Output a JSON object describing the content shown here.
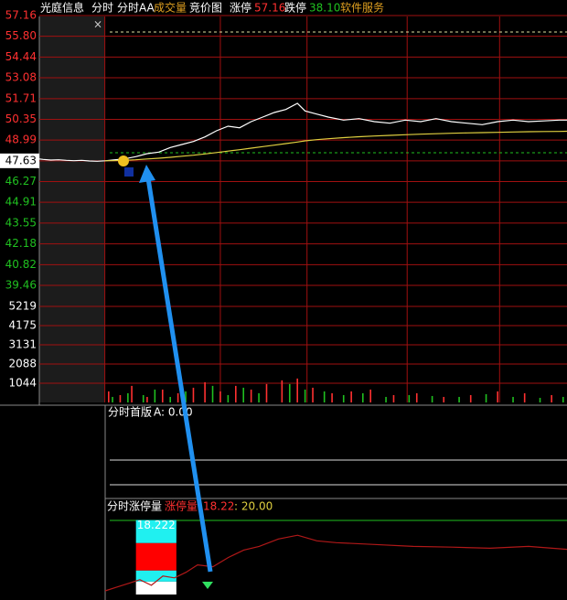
{
  "header": {
    "stock": "光庭信息",
    "tabs": [
      "分时",
      "分时AA",
      "成交量",
      "竞价图"
    ],
    "limit_up_label": "涨停",
    "limit_up": "57.16",
    "limit_down_label": "跌停",
    "limit_down": "38.10",
    "sector": "软件服务",
    "close": "×"
  },
  "chart_data": {
    "type": "line",
    "xlim": [
      -34,
      240
    ],
    "ylim": [
      39.46,
      57.16
    ],
    "yticks": [
      57.16,
      {
        "value": 55.8,
        "label": "55.80"
      },
      54.44,
      53.08,
      51.71,
      50.35,
      48.99,
      47.63,
      46.27,
      44.91,
      43.55,
      42.18,
      40.82,
      39.46
    ],
    "grid": true,
    "x": [
      -34,
      -32,
      -28,
      -24,
      -20,
      -16,
      -12,
      -8,
      -4,
      0,
      4,
      10,
      16,
      22,
      28,
      34,
      40,
      46,
      52,
      58,
      64,
      70,
      76,
      82,
      88,
      94,
      100,
      104,
      110,
      116,
      124,
      132,
      140,
      148,
      156,
      164,
      172,
      180,
      188,
      196,
      204,
      212,
      220,
      228,
      236,
      240
    ],
    "series": [
      {
        "color": "#ffffff",
        "values": [
          47.75,
          47.72,
          47.68,
          47.7,
          47.66,
          47.64,
          47.66,
          47.62,
          47.6,
          47.63,
          47.68,
          47.75,
          47.9,
          48.1,
          48.2,
          48.5,
          48.7,
          48.9,
          49.2,
          49.6,
          49.9,
          49.8,
          50.2,
          50.5,
          50.8,
          51.0,
          51.4,
          50.9,
          50.7,
          50.5,
          50.3,
          50.4,
          50.2,
          50.1,
          50.3,
          50.2,
          50.4,
          50.2,
          50.1,
          50.0,
          50.2,
          50.3,
          50.2,
          50.25,
          50.3,
          50.3
        ]
      },
      {
        "color": "#e0d040",
        "values": [
          null,
          null,
          null,
          null,
          null,
          null,
          null,
          null,
          null,
          47.63,
          47.64,
          47.66,
          47.7,
          47.75,
          47.8,
          47.86,
          47.93,
          48.0,
          48.08,
          48.17,
          48.27,
          48.36,
          48.46,
          48.56,
          48.66,
          48.76,
          48.86,
          48.94,
          49.02,
          49.08,
          49.15,
          49.21,
          49.26,
          49.3,
          49.34,
          49.38,
          49.41,
          49.44,
          49.46,
          49.48,
          49.5,
          49.52,
          49.54,
          49.55,
          49.56,
          49.57
        ]
      }
    ],
    "volume": {
      "ylim": [
        0,
        5219
      ],
      "yticks": [
        5219,
        4175,
        3131,
        2088,
        1044
      ],
      "series": [
        {
          "color": "#ff3030",
          "x": [
            2,
            8,
            14,
            22,
            30,
            38,
            46,
            52,
            60,
            68,
            76,
            84,
            92,
            100,
            108,
            118,
            128,
            138,
            150,
            162,
            176,
            190,
            204,
            218,
            232
          ],
          "values": [
            600,
            400,
            900,
            300,
            700,
            500,
            800,
            1100,
            600,
            900,
            700,
            1000,
            1200,
            1300,
            800,
            500,
            600,
            700,
            400,
            500,
            300,
            400,
            600,
            500,
            400
          ]
        },
        {
          "color": "#20c020",
          "x": [
            4,
            12,
            20,
            26,
            34,
            42,
            56,
            64,
            72,
            80,
            96,
            104,
            114,
            124,
            134,
            146,
            158,
            170,
            184,
            198,
            212,
            226,
            238
          ],
          "values": [
            300,
            500,
            400,
            700,
            300,
            600,
            900,
            400,
            800,
            500,
            1000,
            700,
            600,
            400,
            500,
            300,
            400,
            350,
            300,
            450,
            300,
            250,
            300
          ]
        }
      ]
    }
  },
  "indicator1": {
    "name": "分时首版",
    "value": "A: 0.00"
  },
  "indicator2": {
    "name": "分时涨停量",
    "legend": "涨停量",
    "value": "18.22",
    "reference": ": 20.00",
    "bar_label": "18.222",
    "ylim": [
      0,
      20
    ],
    "x": [
      0,
      6,
      12,
      18,
      24,
      30,
      36,
      42,
      48,
      56,
      64,
      72,
      80,
      90,
      100,
      110,
      120,
      140,
      160,
      180,
      200,
      220,
      240
    ],
    "values": [
      1,
      2,
      3,
      4,
      2.5,
      5,
      4.5,
      6,
      8,
      7.5,
      10,
      12,
      13,
      15,
      16,
      14.5,
      14,
      13.5,
      13,
      12.8,
      12.5,
      13,
      12.2
    ],
    "bar": {
      "x": [
        16,
        37
      ],
      "segments": [
        {
          "color": "#ffffff",
          "value": 3.5
        },
        {
          "color": "#20f0f0",
          "value": 3
        },
        {
          "color": "#ff0000",
          "value": 7.4
        },
        {
          "color": "#20f0f0",
          "value": 6.2
        }
      ]
    }
  }
}
